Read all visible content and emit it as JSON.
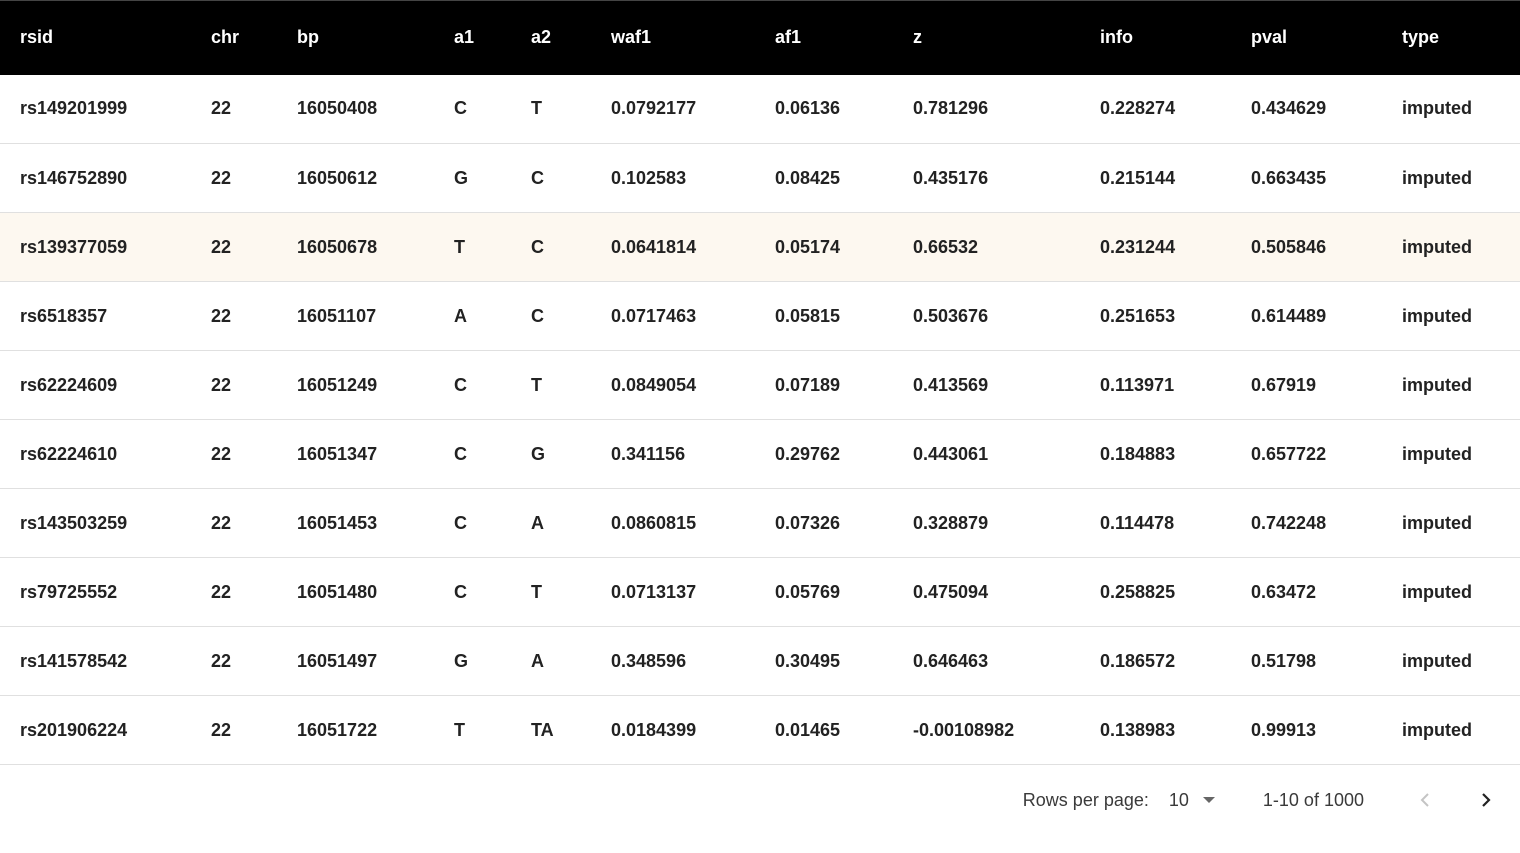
{
  "table": {
    "columns": [
      "rsid",
      "chr",
      "bp",
      "a1",
      "a2",
      "waf1",
      "af1",
      "z",
      "info",
      "pval",
      "type"
    ],
    "rows": [
      [
        "rs149201999",
        "22",
        "16050408",
        "C",
        "T",
        "0.0792177",
        "0.06136",
        "0.781296",
        "0.228274",
        "0.434629",
        "imputed"
      ],
      [
        "rs146752890",
        "22",
        "16050612",
        "G",
        "C",
        "0.102583",
        "0.08425",
        "0.435176",
        "0.215144",
        "0.663435",
        "imputed"
      ],
      [
        "rs139377059",
        "22",
        "16050678",
        "T",
        "C",
        "0.0641814",
        "0.05174",
        "0.66532",
        "0.231244",
        "0.505846",
        "imputed"
      ],
      [
        "rs6518357",
        "22",
        "16051107",
        "A",
        "C",
        "0.0717463",
        "0.05815",
        "0.503676",
        "0.251653",
        "0.614489",
        "imputed"
      ],
      [
        "rs62224609",
        "22",
        "16051249",
        "C",
        "T",
        "0.0849054",
        "0.07189",
        "0.413569",
        "0.113971",
        "0.67919",
        "imputed"
      ],
      [
        "rs62224610",
        "22",
        "16051347",
        "C",
        "G",
        "0.341156",
        "0.29762",
        "0.443061",
        "0.184883",
        "0.657722",
        "imputed"
      ],
      [
        "rs143503259",
        "22",
        "16051453",
        "C",
        "A",
        "0.0860815",
        "0.07326",
        "0.328879",
        "0.114478",
        "0.742248",
        "imputed"
      ],
      [
        "rs79725552",
        "22",
        "16051480",
        "C",
        "T",
        "0.0713137",
        "0.05769",
        "0.475094",
        "0.258825",
        "0.63472",
        "imputed"
      ],
      [
        "rs141578542",
        "22",
        "16051497",
        "G",
        "A",
        "0.348596",
        "0.30495",
        "0.646463",
        "0.186572",
        "0.51798",
        "imputed"
      ],
      [
        "rs201906224",
        "22",
        "16051722",
        "T",
        "TA",
        "0.0184399",
        "0.01465",
        "-0.00108982",
        "0.138983",
        "0.99913",
        "imputed"
      ]
    ],
    "highlighted_row": 2
  },
  "pagination": {
    "rows_per_page_label": "Rows per page:",
    "rows_per_page_value": "10",
    "range_text": "1-10 of 1000",
    "prev_icon": "chevron-left-icon",
    "next_icon": "chevron-right-icon"
  },
  "colors": {
    "header_bg": "#000000",
    "header_text": "#ffffff",
    "highlight_row_bg": "#fdf8f0",
    "row_border": "#e0e0e0"
  }
}
